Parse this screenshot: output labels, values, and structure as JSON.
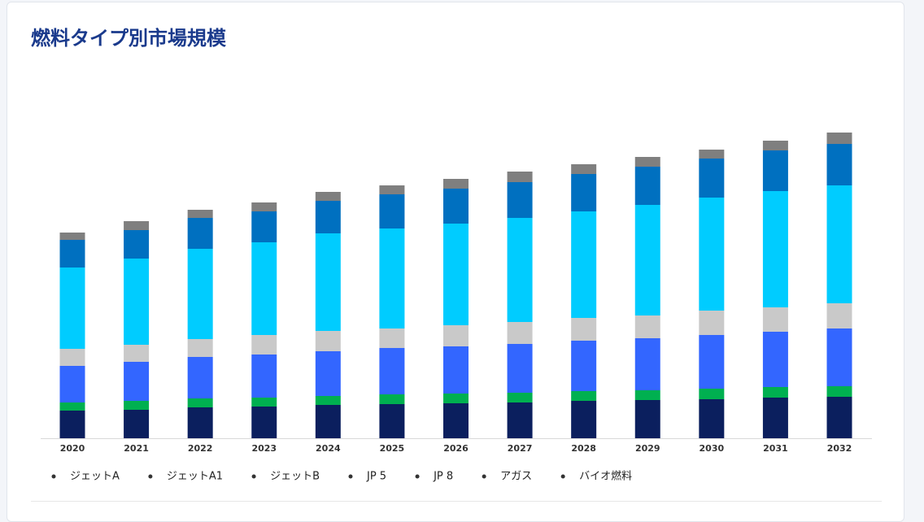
{
  "chart_data": {
    "type": "stacked_bar",
    "title": "燃料タイプ別市場規模",
    "categories": [
      "2020",
      "2021",
      "2022",
      "2023",
      "2024",
      "2025",
      "2026",
      "2027",
      "2028",
      "2029",
      "2030",
      "2031",
      "2032"
    ],
    "series": [
      {
        "name": "ジェットA",
        "color": "#0b1f5e",
        "values": [
          34,
          35,
          38,
          39,
          41,
          42,
          43,
          44,
          46,
          47,
          48,
          50,
          51
        ]
      },
      {
        "name": "ジェットA1",
        "color": "#00b050",
        "values": [
          10,
          11,
          11,
          11,
          11,
          12,
          12,
          12,
          12,
          12,
          13,
          13,
          13
        ]
      },
      {
        "name": "ジェットB",
        "color": "#3366ff",
        "values": [
          45,
          48,
          51,
          53,
          55,
          57,
          58,
          60,
          62,
          64,
          66,
          68,
          71
        ]
      },
      {
        "name": "JP 5",
        "color": "#c9c9c9",
        "values": [
          21,
          21,
          22,
          24,
          25,
          24,
          26,
          27,
          28,
          28,
          30,
          30,
          31
        ]
      },
      {
        "name": "JP 8",
        "color": "#00ccff",
        "values": [
          100,
          106,
          111,
          114,
          120,
          123,
          125,
          128,
          131,
          136,
          139,
          143,
          145
        ]
      },
      {
        "name": "アガス",
        "color": "#0070c0",
        "values": [
          34,
          35,
          38,
          38,
          40,
          42,
          43,
          44,
          46,
          47,
          48,
          50,
          51
        ]
      },
      {
        "name": "バイオ燃料",
        "color": "#7f7f7f",
        "values": [
          9,
          11,
          10,
          11,
          11,
          11,
          12,
          13,
          12,
          12,
          11,
          12,
          14
        ]
      }
    ],
    "ylim": [
      0,
      400
    ]
  }
}
